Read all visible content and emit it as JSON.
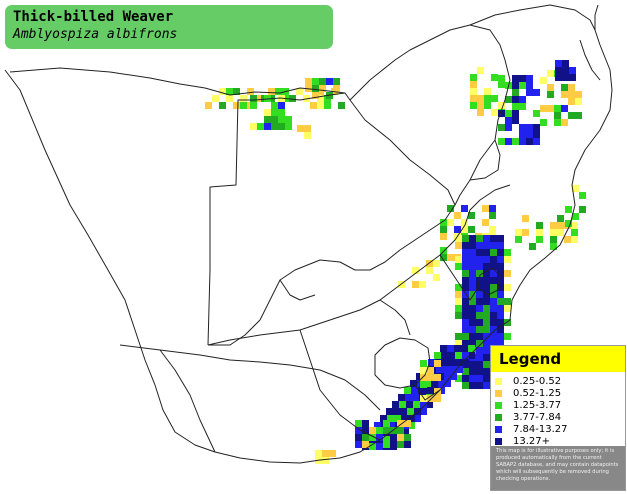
{
  "title": {
    "common_name": "Thick-billed Weaver",
    "scientific_name": "Amblyospiza albifrons"
  },
  "legend": {
    "heading": "Legend",
    "entries": [
      {
        "label": "0.25-0.52",
        "color": "#ffff66"
      },
      {
        "label": "0.52-1.25",
        "color": "#ffcc44"
      },
      {
        "label": "1.25-3.77",
        "color": "#33dd22"
      },
      {
        "label": "3.77-7.84",
        "color": "#22aa22"
      },
      {
        "label": "7.84-13.27",
        "color": "#2222ee"
      },
      {
        "label": "13.27+",
        "color": "#111188"
      }
    ],
    "note": "This map is for illustrative purposes only; it is produced automatically from the current SABAP2 database, and may contain datapoints which will subsequently be removed during checking operations."
  },
  "colors": {
    "title_background": "#66cc66",
    "legend_heading_background": "#ffff00",
    "border_lines": "#222222"
  }
}
